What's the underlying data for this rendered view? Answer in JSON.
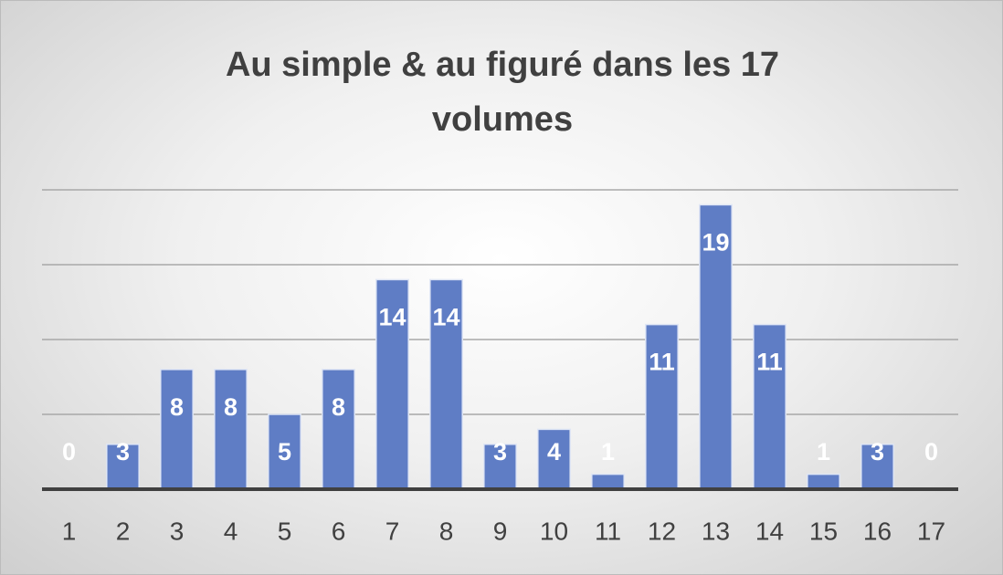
{
  "chart_data": {
    "type": "bar",
    "title": "Au simple & au figuré dans les 17 volumes",
    "categories": [
      "1",
      "2",
      "3",
      "4",
      "5",
      "6",
      "7",
      "8",
      "9",
      "10",
      "11",
      "12",
      "13",
      "14",
      "15",
      "16",
      "17"
    ],
    "values": [
      0,
      3,
      8,
      8,
      5,
      8,
      14,
      14,
      3,
      4,
      1,
      11,
      19,
      11,
      1,
      3,
      0
    ],
    "color": "#5f7dc5",
    "ylim": [
      0,
      20
    ],
    "yticks": [
      0,
      5,
      10,
      15,
      20
    ],
    "grid": true
  }
}
